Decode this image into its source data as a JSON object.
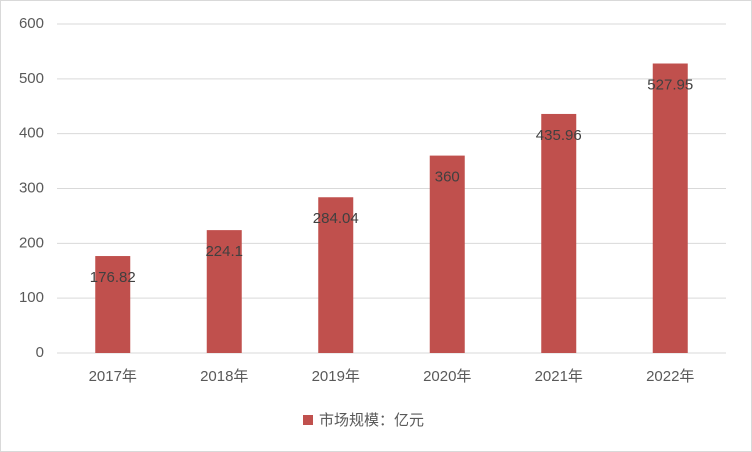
{
  "chart_data": {
    "type": "bar",
    "categories": [
      "2017年",
      "2018年",
      "2019年",
      "2020年",
      "2021年",
      "2022年"
    ],
    "series": [
      {
        "name": "市场规模：亿元",
        "color": "#c0504d",
        "values": [
          176.82,
          224.1,
          284.04,
          360,
          435.96,
          527.95
        ]
      }
    ],
    "ylim": [
      0,
      600
    ],
    "yticks": [
      0,
      100,
      200,
      300,
      400,
      500,
      600
    ],
    "grid": true,
    "legend": "bottom"
  }
}
